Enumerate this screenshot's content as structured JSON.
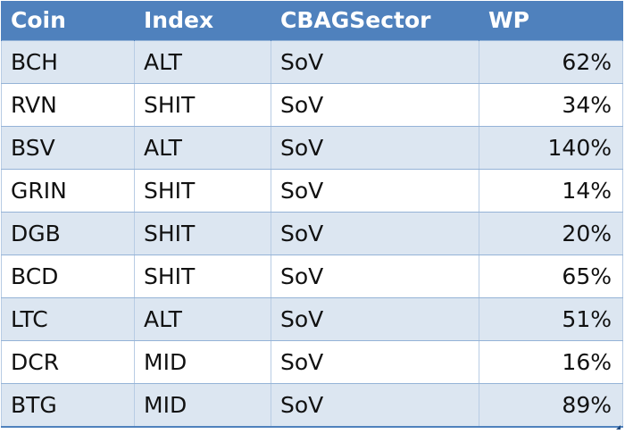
{
  "table": {
    "headers": [
      "Coin",
      "Index",
      "CBAGSector",
      "WP"
    ],
    "rows": [
      {
        "coin": "BCH",
        "index": "ALT",
        "sector": "SoV",
        "wp": "62%"
      },
      {
        "coin": "RVN",
        "index": "SHIT",
        "sector": "SoV",
        "wp": "34%"
      },
      {
        "coin": "BSV",
        "index": "ALT",
        "sector": "SoV",
        "wp": "140%"
      },
      {
        "coin": "GRIN",
        "index": "SHIT",
        "sector": "SoV",
        "wp": "14%"
      },
      {
        "coin": "DGB",
        "index": "SHIT",
        "sector": "SoV",
        "wp": "20%"
      },
      {
        "coin": "BCD",
        "index": "SHIT",
        "sector": "SoV",
        "wp": "65%"
      },
      {
        "coin": "LTC",
        "index": "ALT",
        "sector": "SoV",
        "wp": "51%"
      },
      {
        "coin": "DCR",
        "index": "MID",
        "sector": "SoV",
        "wp": "16%"
      },
      {
        "coin": "BTG",
        "index": "MID",
        "sector": "SoV",
        "wp": "89%"
      }
    ]
  },
  "colors": {
    "header_bg": "#4f81bd",
    "band_row": "#dce6f1",
    "plain_row": "#ffffff",
    "header_text": "#ffffff"
  }
}
